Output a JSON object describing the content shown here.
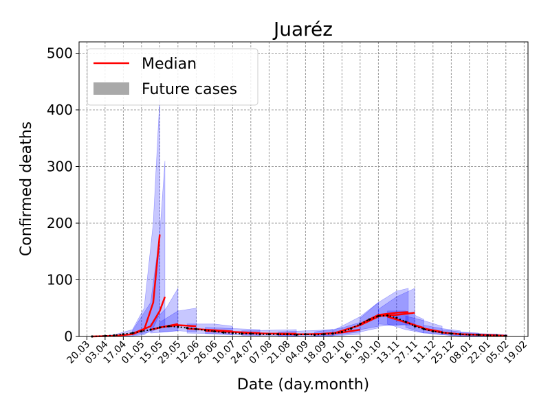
{
  "chart_data": {
    "type": "line",
    "title": "Juaréz",
    "xlabel": "Date (day.month)",
    "ylabel": "Confirmed deaths",
    "xlim": [
      "2020-03-14",
      "2021-02-22"
    ],
    "ylim": [
      0,
      520
    ],
    "grid": true,
    "legend_position": "top-left",
    "yticks": [
      0,
      100,
      200,
      300,
      400,
      500
    ],
    "xticks": [
      {
        "date": "2020-03-20",
        "label": "20.03"
      },
      {
        "date": "2020-04-03",
        "label": "03.04"
      },
      {
        "date": "2020-04-17",
        "label": "17.04"
      },
      {
        "date": "2020-05-01",
        "label": "01.05"
      },
      {
        "date": "2020-05-15",
        "label": "15.05"
      },
      {
        "date": "2020-05-29",
        "label": "29.05"
      },
      {
        "date": "2020-06-12",
        "label": "12.06"
      },
      {
        "date": "2020-06-26",
        "label": "26.06"
      },
      {
        "date": "2020-07-10",
        "label": "10.07"
      },
      {
        "date": "2020-07-24",
        "label": "24.07"
      },
      {
        "date": "2020-08-07",
        "label": "07.08"
      },
      {
        "date": "2020-08-21",
        "label": "21.08"
      },
      {
        "date": "2020-09-04",
        "label": "04.09"
      },
      {
        "date": "2020-09-18",
        "label": "18.09"
      },
      {
        "date": "2020-10-02",
        "label": "02.10"
      },
      {
        "date": "2020-10-16",
        "label": "16.10"
      },
      {
        "date": "2020-10-30",
        "label": "30.10"
      },
      {
        "date": "2020-11-13",
        "label": "13.11"
      },
      {
        "date": "2020-11-27",
        "label": "27.11"
      },
      {
        "date": "2020-12-11",
        "label": "11.12"
      },
      {
        "date": "2020-12-25",
        "label": "25.12"
      },
      {
        "date": "2021-01-08",
        "label": "08.01"
      },
      {
        "date": "2021-01-22",
        "label": "22.01"
      },
      {
        "date": "2021-02-05",
        "label": "05.02"
      },
      {
        "date": "2021-02-19",
        "label": "19.02"
      }
    ],
    "legend": [
      {
        "label": "Median",
        "kind": "line",
        "color": "#ff0000"
      },
      {
        "label": "Future cases",
        "kind": "patch",
        "color": "#a9a9a9"
      }
    ],
    "colors": {
      "median": "#ff0000",
      "band": "#0000ff",
      "observed": "#000000"
    },
    "observed_deaths": [
      [
        "2020-03-24",
        0
      ],
      [
        "2020-04-03",
        1
      ],
      [
        "2020-04-10",
        2
      ],
      [
        "2020-04-17",
        4
      ],
      [
        "2020-04-24",
        6
      ],
      [
        "2020-05-01",
        9
      ],
      [
        "2020-05-08",
        12
      ],
      [
        "2020-05-15",
        16
      ],
      [
        "2020-05-22",
        18
      ],
      [
        "2020-05-29",
        17
      ],
      [
        "2020-06-05",
        15
      ],
      [
        "2020-06-12",
        13
      ],
      [
        "2020-06-19",
        11
      ],
      [
        "2020-06-26",
        9
      ],
      [
        "2020-07-03",
        7
      ],
      [
        "2020-07-10",
        6
      ],
      [
        "2020-07-17",
        5
      ],
      [
        "2020-07-24",
        5
      ],
      [
        "2020-07-31",
        4
      ],
      [
        "2020-08-07",
        4
      ],
      [
        "2020-08-14",
        4
      ],
      [
        "2020-08-21",
        4
      ],
      [
        "2020-08-28",
        3
      ],
      [
        "2020-09-04",
        4
      ],
      [
        "2020-09-11",
        3
      ],
      [
        "2020-09-18",
        4
      ],
      [
        "2020-09-25",
        5
      ],
      [
        "2020-10-02",
        8
      ],
      [
        "2020-10-09",
        14
      ],
      [
        "2020-10-16",
        22
      ],
      [
        "2020-10-23",
        30
      ],
      [
        "2020-10-30",
        36
      ],
      [
        "2020-11-06",
        37
      ],
      [
        "2020-11-13",
        33
      ],
      [
        "2020-11-20",
        26
      ],
      [
        "2020-11-27",
        18
      ],
      [
        "2020-12-04",
        13
      ],
      [
        "2020-12-11",
        9
      ],
      [
        "2020-12-18",
        7
      ],
      [
        "2020-12-25",
        5
      ],
      [
        "2021-01-01",
        4
      ],
      [
        "2021-01-08",
        3
      ],
      [
        "2021-01-15",
        3
      ],
      [
        "2021-01-22",
        2
      ],
      [
        "2021-01-29",
        2
      ],
      [
        "2021-02-05",
        1
      ]
    ],
    "forecasts": [
      {
        "points": [
          [
            "2020-03-24",
            0,
            0,
            0
          ],
          [
            "2020-04-10",
            1,
            0,
            3
          ],
          [
            "2020-04-24",
            4,
            1,
            12
          ],
          [
            "2020-05-03",
            12,
            3,
            50
          ],
          [
            "2020-05-10",
            60,
            15,
            200
          ],
          [
            "2020-05-15",
            180,
            40,
            420
          ]
        ]
      },
      {
        "points": [
          [
            "2020-04-24",
            5,
            2,
            10
          ],
          [
            "2020-05-08",
            18,
            8,
            60
          ],
          [
            "2020-05-15",
            45,
            15,
            180
          ],
          [
            "2020-05-19",
            70,
            20,
            310
          ]
        ]
      },
      {
        "points": [
          [
            "2020-05-08",
            12,
            6,
            22
          ],
          [
            "2020-05-20",
            18,
            8,
            50
          ],
          [
            "2020-05-29",
            22,
            10,
            85
          ]
        ]
      },
      {
        "points": [
          [
            "2020-05-15",
            16,
            8,
            25
          ],
          [
            "2020-05-29",
            20,
            10,
            45
          ],
          [
            "2020-06-12",
            18,
            8,
            50
          ]
        ]
      },
      {
        "points": [
          [
            "2020-06-05",
            14,
            6,
            22
          ],
          [
            "2020-06-26",
            11,
            5,
            22
          ],
          [
            "2020-07-10",
            9,
            3,
            18
          ]
        ]
      },
      {
        "points": [
          [
            "2020-06-19",
            10,
            5,
            16
          ],
          [
            "2020-07-10",
            8,
            3,
            14
          ],
          [
            "2020-07-31",
            6,
            2,
            12
          ]
        ]
      },
      {
        "points": [
          [
            "2020-07-17",
            6,
            2,
            10
          ],
          [
            "2020-08-07",
            5,
            2,
            11
          ],
          [
            "2020-08-28",
            5,
            1,
            12
          ]
        ]
      },
      {
        "points": [
          [
            "2020-08-14",
            4,
            1,
            8
          ],
          [
            "2020-09-04",
            4,
            1,
            10
          ],
          [
            "2020-09-25",
            5,
            1,
            12
          ]
        ]
      },
      {
        "points": [
          [
            "2020-09-11",
            4,
            1,
            8
          ],
          [
            "2020-10-02",
            7,
            2,
            15
          ],
          [
            "2020-10-16",
            12,
            4,
            25
          ]
        ]
      },
      {
        "points": [
          [
            "2020-09-25",
            5,
            2,
            10
          ],
          [
            "2020-10-16",
            20,
            8,
            35
          ],
          [
            "2020-10-30",
            35,
            15,
            60
          ]
        ]
      },
      {
        "points": [
          [
            "2020-10-16",
            22,
            12,
            32
          ],
          [
            "2020-10-30",
            38,
            18,
            60
          ],
          [
            "2020-11-13",
            42,
            20,
            80
          ],
          [
            "2020-11-22",
            43,
            22,
            85
          ]
        ]
      },
      {
        "points": [
          [
            "2020-10-30",
            36,
            22,
            48
          ],
          [
            "2020-11-13",
            38,
            20,
            70
          ],
          [
            "2020-11-27",
            42,
            20,
            85
          ]
        ]
      },
      {
        "points": [
          [
            "2020-11-06",
            35,
            22,
            45
          ],
          [
            "2020-11-20",
            25,
            12,
            45
          ],
          [
            "2020-12-04",
            15,
            6,
            30
          ]
        ]
      },
      {
        "points": [
          [
            "2020-11-20",
            26,
            16,
            36
          ],
          [
            "2020-12-04",
            14,
            6,
            28
          ],
          [
            "2020-12-18",
            8,
            3,
            18
          ]
        ]
      },
      {
        "points": [
          [
            "2020-12-04",
            13,
            7,
            20
          ],
          [
            "2020-12-18",
            7,
            3,
            14
          ],
          [
            "2021-01-01",
            4,
            1,
            10
          ]
        ]
      },
      {
        "points": [
          [
            "2020-12-18",
            7,
            3,
            12
          ],
          [
            "2021-01-01",
            4,
            1,
            8
          ],
          [
            "2021-01-15",
            3,
            1,
            6
          ]
        ]
      },
      {
        "points": [
          [
            "2021-01-01",
            4,
            1,
            7
          ],
          [
            "2021-01-15",
            3,
            1,
            5
          ],
          [
            "2021-01-29",
            2,
            0,
            4
          ]
        ]
      },
      {
        "points": [
          [
            "2021-01-15",
            3,
            1,
            5
          ],
          [
            "2021-01-29",
            2,
            0,
            4
          ],
          [
            "2021-02-06",
            1,
            0,
            3
          ]
        ]
      }
    ]
  }
}
